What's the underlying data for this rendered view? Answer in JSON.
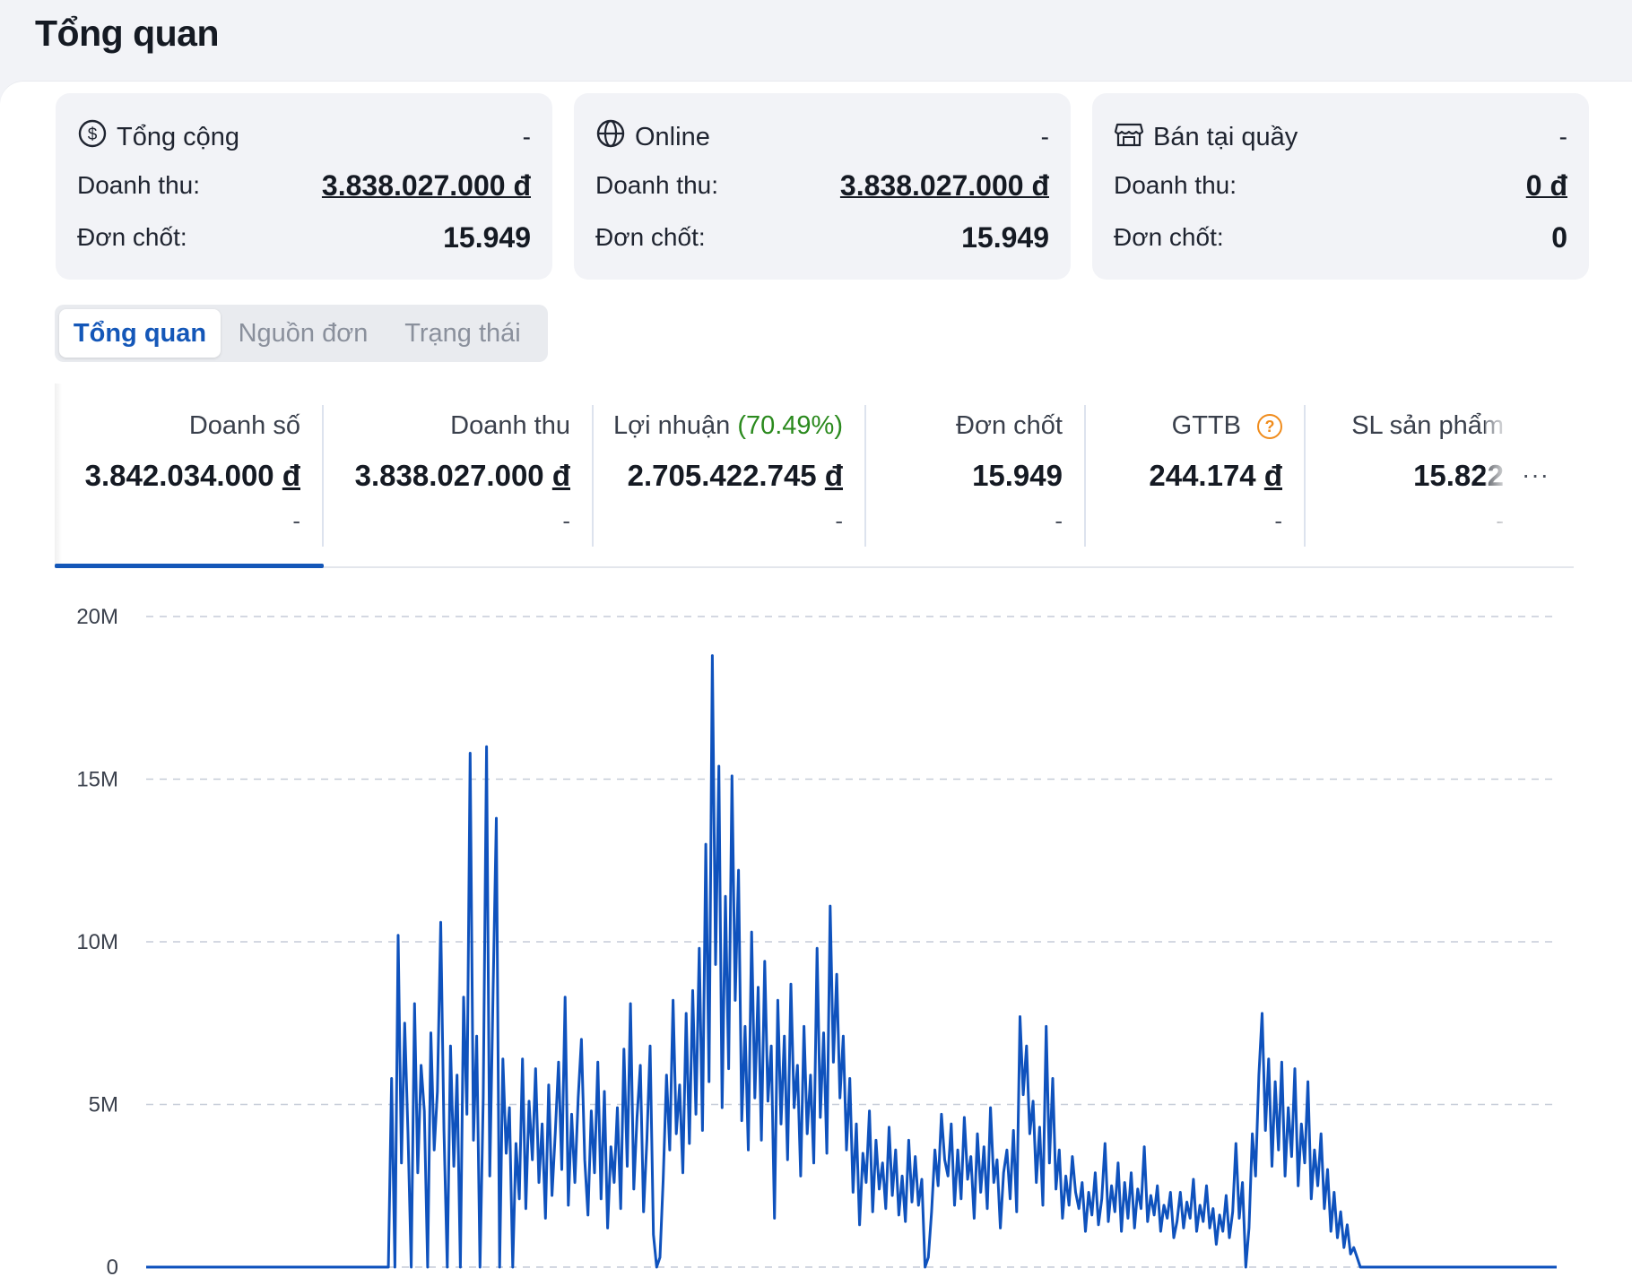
{
  "page": {
    "title": "Tổng quan"
  },
  "cards": [
    {
      "icon": "dollar-circle-icon",
      "title": "Tổng cộng",
      "dash": "-",
      "revenue_label": "Doanh thu:",
      "revenue_value": "3.838.027.000 đ",
      "orders_label": "Đơn chốt:",
      "orders_value": "15.949"
    },
    {
      "icon": "globe-icon",
      "title": "Online",
      "dash": "-",
      "revenue_label": "Doanh thu:",
      "revenue_value": "3.838.027.000 đ",
      "orders_label": "Đơn chốt:",
      "orders_value": "15.949"
    },
    {
      "icon": "store-icon",
      "title": "Bán tại quầy",
      "dash": "-",
      "revenue_label": "Doanh thu:",
      "revenue_value": "0 đ",
      "orders_label": "Đơn chốt:",
      "orders_value": "0"
    }
  ],
  "tabs": [
    {
      "label": "Tổng quan",
      "active": true
    },
    {
      "label": "Nguồn đơn",
      "active": false
    },
    {
      "label": "Trạng thái",
      "active": false
    }
  ],
  "metrics": [
    {
      "label": "Doanh số",
      "value": "3.842.034.000 đ",
      "sub": "-"
    },
    {
      "label": "Doanh thu",
      "value": "3.838.027.000 đ",
      "sub": "-"
    },
    {
      "label": "Lợi nhuận",
      "pct": "(70.49%)",
      "value": "2.705.422.745 đ",
      "sub": "-"
    },
    {
      "label": "Đơn chốt",
      "value": "15.949",
      "sub": "-"
    },
    {
      "label": "GTTB",
      "help": "?",
      "value": "244.174 đ",
      "sub": "-"
    },
    {
      "label": "SL sản phẩm",
      "value": "15.822",
      "sub": "-"
    }
  ],
  "more_label": "···",
  "colors": {
    "accent": "#1457b8",
    "line": "#0f52bd",
    "profit_pct": "#2b8a1e",
    "help": "#f08c1c"
  },
  "chart_data": {
    "type": "line",
    "y_ticks": [
      "0",
      "5M",
      "10M",
      "15M",
      "20M"
    ],
    "ylim": [
      0,
      20000000
    ],
    "grid": "horizontal-dashed",
    "series": [
      {
        "values": [
          0,
          0,
          0,
          0,
          0,
          0,
          0,
          0,
          0,
          0,
          0,
          0,
          0,
          0,
          0,
          0,
          0,
          0,
          0,
          0,
          0,
          0,
          0,
          0,
          0,
          0,
          0,
          0,
          0,
          0,
          0,
          0,
          0,
          0,
          0,
          0,
          0,
          0,
          0,
          0,
          0,
          0,
          0,
          0,
          0,
          0,
          0,
          0,
          0,
          0,
          0,
          0,
          0,
          0,
          0,
          0,
          0,
          0,
          0,
          0,
          0,
          0,
          0,
          0,
          0,
          0,
          0,
          0,
          0,
          0,
          0,
          0,
          0,
          0,
          0,
          5800000,
          0,
          10200000,
          3200000,
          7500000,
          4100000,
          0,
          8100000,
          2900000,
          6200000,
          4800000,
          0,
          7200000,
          3600000,
          5400000,
          10600000,
          4200000,
          0,
          6800000,
          3100000,
          5900000,
          0,
          8300000,
          4700000,
          15800000,
          3900000,
          7100000,
          0,
          5200000,
          16000000,
          2800000,
          8500000,
          13800000,
          0,
          6400000,
          3500000,
          4900000,
          0,
          3800000,
          2100000,
          6400000,
          1800000,
          5100000,
          3300000,
          6100000,
          2600000,
          4400000,
          1500000,
          5600000,
          2200000,
          4100000,
          6300000,
          3000000,
          8300000,
          1900000,
          4700000,
          2600000,
          5200000,
          7000000,
          3300000,
          1600000,
          4800000,
          2900000,
          6300000,
          2100000,
          5400000,
          1200000,
          3700000,
          2600000,
          4900000,
          1800000,
          6700000,
          3100000,
          8100000,
          2400000,
          4600000,
          6200000,
          1700000,
          3900000,
          6800000,
          1000000,
          0,
          300000,
          2700000,
          5900000,
          3600000,
          8200000,
          4100000,
          5600000,
          2900000,
          7800000,
          3800000,
          8500000,
          4700000,
          9800000,
          4200000,
          13000000,
          5700000,
          18800000,
          9300000,
          15400000,
          4900000,
          11400000,
          6100000,
          15100000,
          8200000,
          12200000,
          4500000,
          7400000,
          3600000,
          10300000,
          5200000,
          8600000,
          3900000,
          9400000,
          5100000,
          6800000,
          1500000,
          8200000,
          4400000,
          7100000,
          3300000,
          8700000,
          4900000,
          6200000,
          2800000,
          7400000,
          4100000,
          5900000,
          3200000,
          9800000,
          4600000,
          7200000,
          3500000,
          11100000,
          6300000,
          9000000,
          5200000,
          7100000,
          3600000,
          5800000,
          2300000,
          4400000,
          1300000,
          3500000,
          2600000,
          4800000,
          1700000,
          3900000,
          2400000,
          3200000,
          1800000,
          4300000,
          2200000,
          3600000,
          1600000,
          2800000,
          1400000,
          3900000,
          2000000,
          3400000,
          1900000,
          2700000,
          0,
          300000,
          1700000,
          3600000,
          2500000,
          4700000,
          3300000,
          2800000,
          4400000,
          1900000,
          3600000,
          2100000,
          4600000,
          2700000,
          3400000,
          1500000,
          4100000,
          2300000,
          3700000,
          1800000,
          4900000,
          2600000,
          3300000,
          1200000,
          2900000,
          3600000,
          2100000,
          4200000,
          1700000,
          7700000,
          5300000,
          6800000,
          4100000,
          5100000,
          2600000,
          4300000,
          1900000,
          7400000,
          3200000,
          5800000,
          2400000,
          3600000,
          1500000,
          2800000,
          1900000,
          3400000,
          2300000,
          1800000,
          2600000,
          1100000,
          2300000,
          1600000,
          2900000,
          1300000,
          2100000,
          3800000,
          1400000,
          2500000,
          1700000,
          3200000,
          1100000,
          2600000,
          1500000,
          2900000,
          1200000,
          2400000,
          1800000,
          3700000,
          1400000,
          2200000,
          1600000,
          2500000,
          1100000,
          1900000,
          1500000,
          2300000,
          900000,
          1400000,
          2300000,
          1200000,
          2000000,
          1500000,
          2700000,
          1100000,
          1900000,
          1400000,
          2500000,
          1200000,
          1800000,
          700000,
          1600000,
          1100000,
          2200000,
          900000,
          1700000,
          3800000,
          1500000,
          2600000,
          0,
          1200000,
          4100000,
          2800000,
          5900000,
          7800000,
          4200000,
          6400000,
          3100000,
          5700000,
          3600000,
          6300000,
          2800000,
          4900000,
          3400000,
          6100000,
          2500000,
          4400000,
          3200000,
          5700000,
          2100000,
          3600000,
          2500000,
          4100000,
          1800000,
          3000000,
          1100000,
          2300000,
          900000,
          1700000,
          600000,
          1300000,
          400000,
          600000,
          300000,
          0,
          0,
          0,
          0,
          0,
          0,
          0,
          0,
          0,
          0,
          0,
          0,
          0,
          0,
          0,
          0,
          0,
          0,
          0,
          0,
          0,
          0,
          0,
          0,
          0,
          0,
          0,
          0,
          0,
          0,
          0,
          0,
          0,
          0,
          0,
          0,
          0,
          0,
          0,
          0,
          0,
          0,
          0,
          0,
          0,
          0,
          0,
          0,
          0,
          0,
          0,
          0,
          0,
          0,
          0,
          0,
          0,
          0,
          0,
          0,
          0
        ]
      }
    ]
  }
}
